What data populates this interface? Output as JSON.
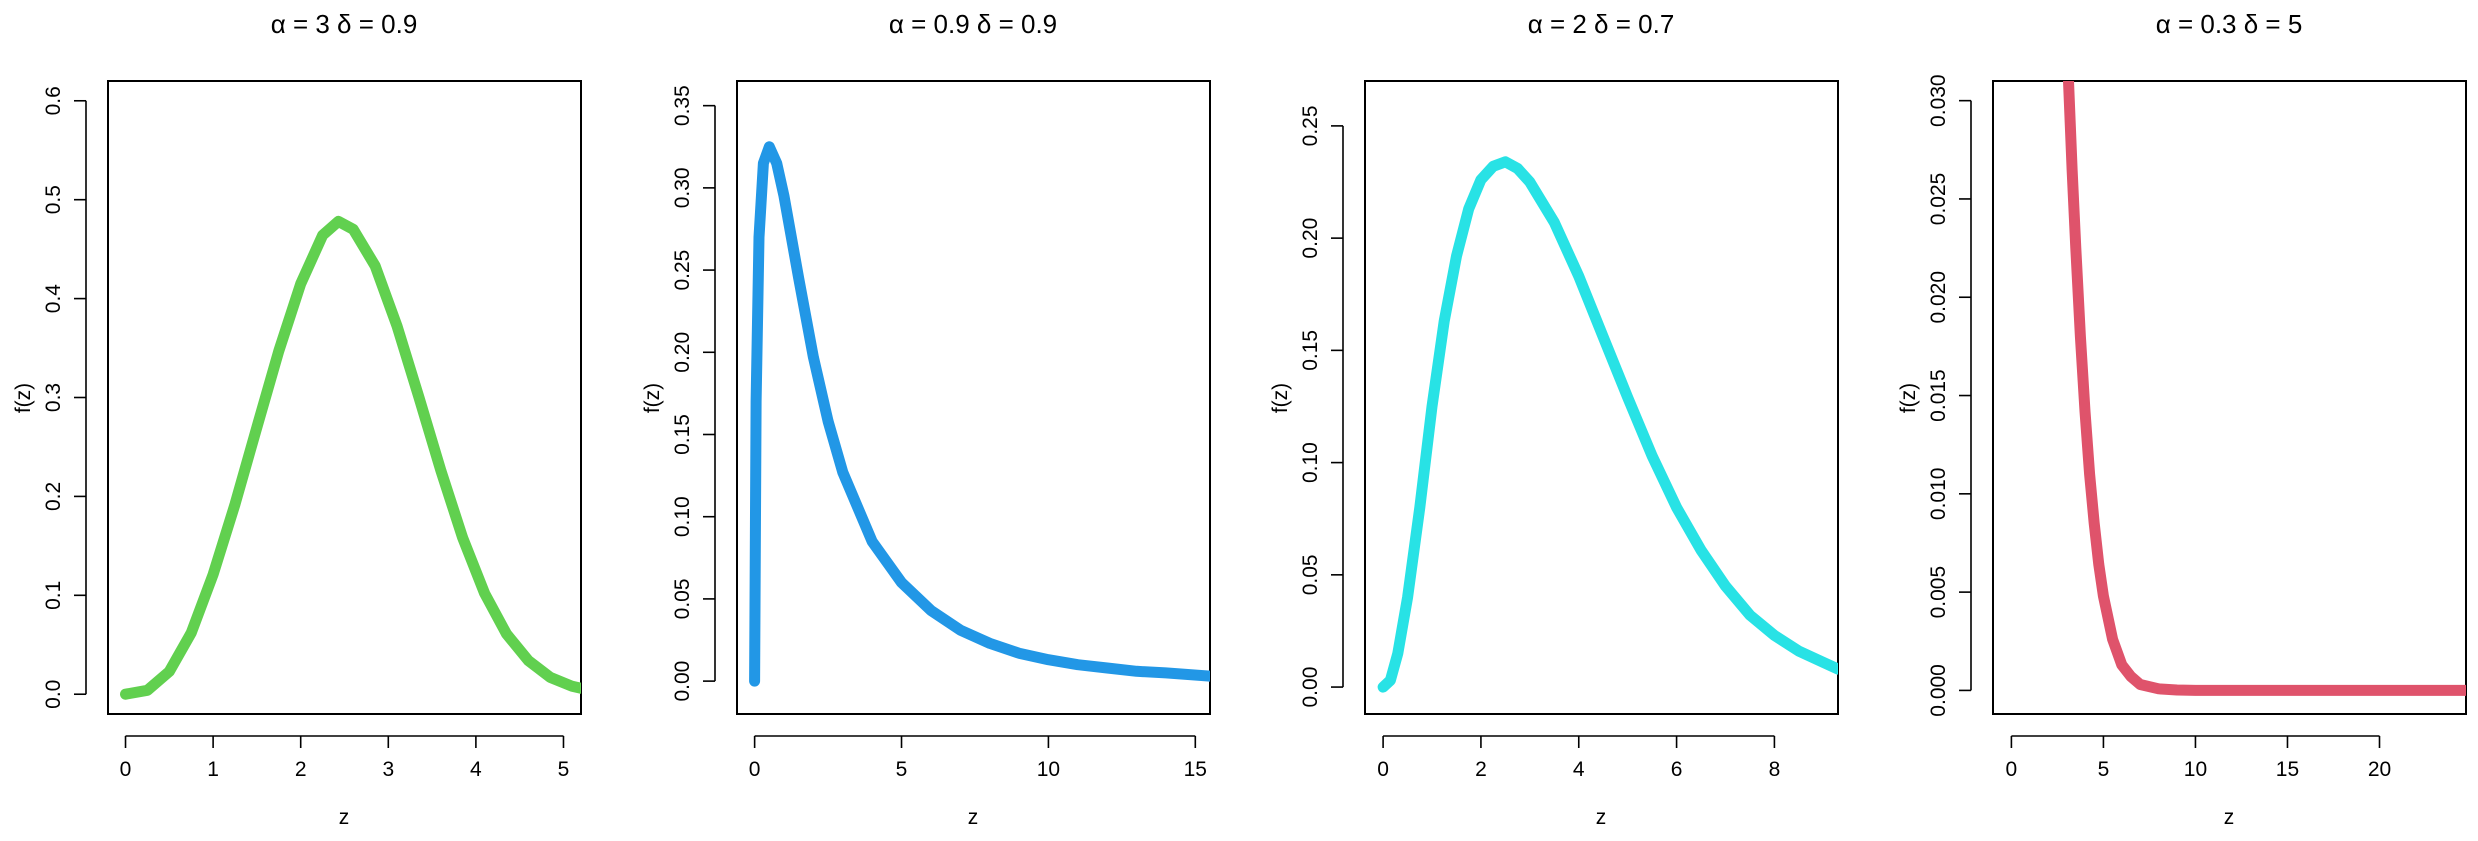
{
  "chart_data": [
    {
      "type": "line",
      "title": "α = 3  δ = 0.9",
      "alpha": 3,
      "delta": 0.9,
      "xlabel": "z",
      "ylabel": "f(z)",
      "xlim": [
        -0.2,
        5.2
      ],
      "ylim": [
        -0.02,
        0.62
      ],
      "xticks": [
        0,
        1,
        2,
        3,
        4,
        5
      ],
      "yticks": [
        0.0,
        0.1,
        0.2,
        0.3,
        0.4,
        0.5,
        0.6
      ],
      "ytick_labels": [
        "0.0",
        "0.1",
        "0.2",
        "0.3",
        "0.4",
        "0.5",
        "0.6"
      ],
      "color": "#61D04F",
      "series": [
        {
          "x": [
            0,
            0.25,
            0.5,
            0.75,
            1.0,
            1.25,
            1.5,
            1.75,
            2.0,
            2.25,
            2.43,
            2.6,
            2.85,
            3.1,
            3.35,
            3.6,
            3.85,
            4.1,
            4.35,
            4.6,
            4.85,
            5.1,
            5.2
          ],
          "y": [
            0.0,
            0.004,
            0.023,
            0.062,
            0.121,
            0.192,
            0.27,
            0.347,
            0.415,
            0.464,
            0.478,
            0.47,
            0.433,
            0.372,
            0.3,
            0.226,
            0.158,
            0.102,
            0.061,
            0.034,
            0.017,
            0.008,
            0.006
          ]
        }
      ]
    },
    {
      "type": "line",
      "title": "α = 0.9  δ = 0.9",
      "alpha": 0.9,
      "delta": 0.9,
      "xlabel": "z",
      "ylabel": "f(z)",
      "xlim": [
        -0.6,
        15.5
      ],
      "ylim": [
        -0.02,
        0.365
      ],
      "xticks": [
        0,
        5,
        10,
        15
      ],
      "yticks": [
        0.0,
        0.05,
        0.1,
        0.15,
        0.2,
        0.25,
        0.3,
        0.35
      ],
      "ytick_labels": [
        "0.00",
        "0.05",
        "0.10",
        "0.15",
        "0.20",
        "0.25",
        "0.30",
        "0.35"
      ],
      "color": "#2297E6",
      "series": [
        {
          "x": [
            0,
            0.05,
            0.15,
            0.3,
            0.5,
            0.75,
            1.0,
            1.5,
            2.0,
            2.5,
            3.0,
            4.0,
            5.0,
            6.0,
            7.0,
            8.0,
            9.0,
            10.0,
            11.0,
            12.0,
            13.0,
            14.0,
            15.5
          ],
          "y": [
            0.0,
            0.17,
            0.27,
            0.315,
            0.325,
            0.315,
            0.295,
            0.245,
            0.197,
            0.158,
            0.127,
            0.085,
            0.06,
            0.043,
            0.031,
            0.023,
            0.017,
            0.013,
            0.01,
            0.008,
            0.006,
            0.005,
            0.003
          ]
        }
      ]
    },
    {
      "type": "line",
      "title": "α = 2  δ = 0.7",
      "alpha": 2,
      "delta": 0.7,
      "xlabel": "z",
      "ylabel": "f(z)",
      "xlim": [
        -0.37,
        9.3
      ],
      "ylim": [
        -0.012,
        0.27
      ],
      "xticks": [
        0,
        2,
        4,
        6,
        8
      ],
      "yticks": [
        0.0,
        0.05,
        0.1,
        0.15,
        0.2,
        0.25
      ],
      "ytick_labels": [
        "0.00",
        "0.05",
        "0.10",
        "0.15",
        "0.20",
        "0.25"
      ],
      "color": "#28E2E5",
      "series": [
        {
          "x": [
            0,
            0.15,
            0.3,
            0.5,
            0.75,
            1.0,
            1.25,
            1.5,
            1.75,
            2.0,
            2.25,
            2.5,
            2.75,
            3.0,
            3.5,
            4.0,
            4.5,
            5.0,
            5.5,
            6.0,
            6.5,
            7.0,
            7.5,
            8.0,
            8.5,
            9.0,
            9.3
          ],
          "y": [
            0.0,
            0.003,
            0.015,
            0.04,
            0.08,
            0.125,
            0.163,
            0.192,
            0.213,
            0.226,
            0.232,
            0.234,
            0.231,
            0.225,
            0.207,
            0.183,
            0.156,
            0.129,
            0.103,
            0.08,
            0.061,
            0.045,
            0.032,
            0.023,
            0.016,
            0.011,
            0.008
          ]
        }
      ]
    },
    {
      "type": "line",
      "title": "α = 0.3  δ = 5",
      "alpha": 0.3,
      "delta": 5,
      "xlabel": "z",
      "ylabel": "f(z)",
      "xlim": [
        -1.0,
        24.7
      ],
      "ylim": [
        -0.0012,
        0.031
      ],
      "xticks": [
        0,
        5,
        10,
        15,
        20
      ],
      "yticks": [
        0.0,
        0.005,
        0.01,
        0.015,
        0.02,
        0.025,
        0.03
      ],
      "ytick_labels": [
        "0.000",
        "0.005",
        "0.010",
        "0.015",
        "0.020",
        "0.025",
        "0.030"
      ],
      "color": "#DF536B",
      "series": [
        {
          "x": [
            3.1,
            3.3,
            3.5,
            3.75,
            4.0,
            4.25,
            4.5,
            4.75,
            5.0,
            5.5,
            6.0,
            6.5,
            7.0,
            8.0,
            9.0,
            10.0,
            12.0,
            15.0,
            20.0,
            24.7
          ],
          "y": [
            0.031,
            0.0265,
            0.0225,
            0.018,
            0.0142,
            0.011,
            0.0085,
            0.0064,
            0.0048,
            0.0026,
            0.0013,
            0.0007,
            0.0003,
            8e-05,
            2e-05,
            0.0,
            0.0,
            0.0,
            0.0,
            0.0
          ]
        }
      ]
    }
  ]
}
